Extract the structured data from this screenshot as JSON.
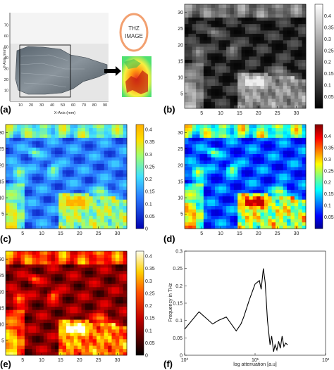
{
  "panels": {
    "a": {
      "label": "(a)",
      "thz_title": "THZ",
      "thz_subtitle": "IMAGE",
      "xlabel": "X-Axis (mm)",
      "ylabel": "Y-Axis (mm)",
      "xticks": [
        "10",
        "20",
        "30",
        "40",
        "50",
        "60",
        "70",
        "80",
        "90"
      ],
      "yticks": [
        "10",
        "20",
        "30",
        "40",
        "50",
        "60",
        "70"
      ]
    },
    "b": {
      "label": "(b)"
    },
    "c": {
      "label": "(c)"
    },
    "d": {
      "label": "(d)"
    },
    "e": {
      "label": "(e)"
    },
    "f": {
      "label": "(f)"
    }
  },
  "colors": {
    "gray": [
      "#000000",
      "#ffffff"
    ],
    "jet": [
      "#00008f",
      "#0000ff",
      "#0080ff",
      "#00ffff",
      "#80ff80",
      "#ffff00",
      "#ff8000",
      "#ff0000",
      "#800000"
    ],
    "hot": [
      "#000000",
      "#800000",
      "#ff0000",
      "#ff8000",
      "#ffff00",
      "#ffffff"
    ],
    "line": "#000000"
  },
  "chart_data": [
    {
      "type": "heatmap",
      "panel": "b",
      "colormap": "gray",
      "x_ticks": [
        "5",
        "10",
        "15",
        "20",
        "25",
        "30"
      ],
      "y_ticks": [
        "5",
        "10",
        "15",
        "20",
        "25",
        "30"
      ],
      "colorbar_ticks": [
        "0.05",
        "0.1",
        "0.15",
        "0.2",
        "0.25",
        "0.3",
        "0.35",
        "0.4"
      ],
      "xlim": [
        1,
        32
      ],
      "ylim": [
        1,
        32
      ],
      "clim": [
        0,
        0.45
      ]
    },
    {
      "type": "heatmap",
      "panel": "c",
      "colormap": "jet-light",
      "x_ticks": [
        "5",
        "10",
        "15",
        "20",
        "25",
        "30"
      ],
      "y_ticks": [
        "5",
        "10",
        "15",
        "20",
        "25",
        "30"
      ],
      "colorbar_ticks": [
        "0",
        "0.05",
        "0.1",
        "0.15",
        "0.2",
        "0.25",
        "0.3",
        "0.35",
        "0.4"
      ],
      "xlim": [
        1,
        32
      ],
      "ylim": [
        1,
        32
      ],
      "clim": [
        0,
        0.42
      ]
    },
    {
      "type": "heatmap",
      "panel": "d",
      "colormap": "jet",
      "x_ticks": [
        "5",
        "10",
        "15",
        "20",
        "25",
        "30"
      ],
      "y_ticks": [
        "5",
        "10",
        "15",
        "20",
        "25",
        "30"
      ],
      "colorbar_ticks": [
        "0.05",
        "0.1",
        "0.15",
        "0.2",
        "0.25",
        "0.3",
        "0.35",
        "0.4"
      ],
      "xlim": [
        1,
        32
      ],
      "ylim": [
        1,
        32
      ],
      "clim": [
        0,
        0.45
      ]
    },
    {
      "type": "heatmap",
      "panel": "e",
      "colormap": "hot",
      "x_ticks": [
        "5",
        "10",
        "15",
        "20",
        "25",
        "30"
      ],
      "y_ticks": [
        "5",
        "10",
        "15",
        "20",
        "25",
        "30"
      ],
      "colorbar_ticks": [
        "0",
        "0.05",
        "0.1",
        "0.15",
        "0.2",
        "0.25",
        "0.3",
        "0.35",
        "0.4"
      ],
      "xlim": [
        1,
        32
      ],
      "ylim": [
        1,
        32
      ],
      "clim": [
        0,
        0.42
      ]
    },
    {
      "type": "line",
      "panel": "f",
      "xlabel": "log attenuation [a.u]",
      "ylabel": "Frequency in THz",
      "x_scale": "log",
      "xlim": [
        1,
        100
      ],
      "ylim": [
        0,
        0.3
      ],
      "x_ticks": [
        "10⁰",
        "10¹",
        "10²"
      ],
      "y_ticks": [
        "0",
        "0.05",
        "0.1",
        "0.15",
        "0.2",
        "0.25",
        "0.3"
      ],
      "series": [
        {
          "x": [
            1.0,
            1.6,
            2.5,
            3.0,
            3.9,
            5.4,
            6.3,
            6.9,
            8.3,
            10.0,
            11.5,
            12.2,
            13.1,
            13.9,
            15.0,
            16.3,
            17.2,
            18.3,
            19.2,
            20.4,
            21.6,
            22.8,
            24.2,
            25.6,
            27.2,
            28.9
          ],
          "y": [
            0.075,
            0.125,
            0.09,
            0.1,
            0.11,
            0.07,
            0.09,
            0.11,
            0.16,
            0.205,
            0.215,
            0.19,
            0.25,
            0.21,
            0.1,
            0.03,
            0.055,
            0.01,
            0.03,
            0.015,
            0.04,
            0.02,
            0.055,
            0.025,
            0.035,
            0.03
          ]
        }
      ]
    }
  ]
}
